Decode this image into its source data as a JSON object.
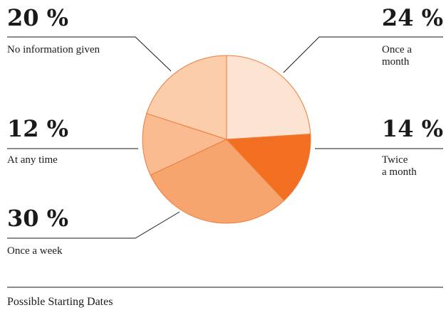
{
  "chart_data": {
    "type": "pie",
    "title": "",
    "slices": [
      {
        "label": "Once a month",
        "label_lines": [
          "Once a",
          "month"
        ],
        "value": 24,
        "value_text": "24 %",
        "color": "#fde3d2"
      },
      {
        "label": "Twice a month",
        "label_lines": [
          "Twice",
          "a month"
        ],
        "value": 14,
        "value_text": "14 %",
        "color": "#f26f22"
      },
      {
        "label": "Once a week",
        "label_lines": [
          "Once a week"
        ],
        "value": 30,
        "value_text": "30 %",
        "color": "#f7a56f"
      },
      {
        "label": "At any time",
        "label_lines": [
          "At any time"
        ],
        "value": 12,
        "value_text": "12 %",
        "color": "#f9bb8f"
      },
      {
        "label": "No information given",
        "label_lines": [
          "No information given"
        ],
        "value": 20,
        "value_text": "20 %",
        "color": "#fbcdaa"
      }
    ]
  },
  "footer": {
    "caption": "Possible Starting Dates"
  }
}
